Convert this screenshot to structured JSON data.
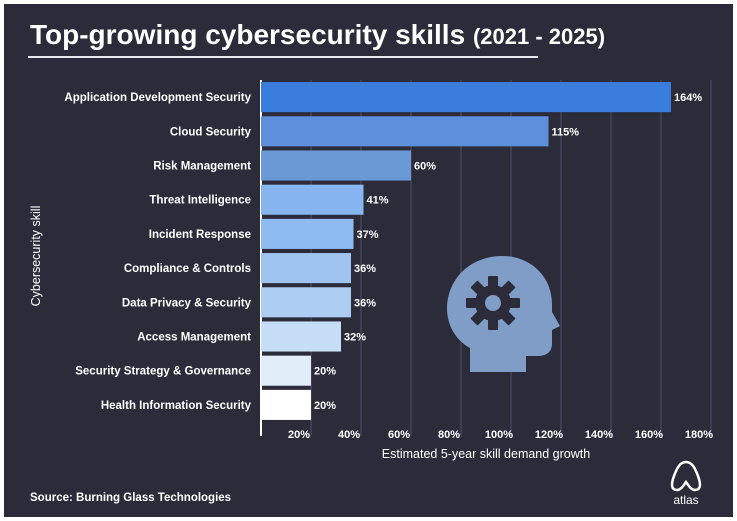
{
  "title": "Top-growing cybersecurity skills",
  "title_suffix": "(2021 - 2025)",
  "source": "Source: Burning Glass Technologies",
  "brand": "atlas",
  "icon": "head-with-gear-icon",
  "colors": {
    "background": "#2b2b3a",
    "text": "#ffffff",
    "grid": "#52526a",
    "icon": "#7f9dc7"
  },
  "chart_data": {
    "type": "bar",
    "orientation": "horizontal",
    "categories": [
      "Application Development Security",
      "Cloud Security",
      "Risk Management",
      "Threat Intelligence",
      "Incident Response",
      "Compliance & Controls",
      "Data Privacy & Security",
      "Access Management",
      "Security Strategy & Governance",
      "Health Information Security"
    ],
    "values": [
      164,
      115,
      60,
      41,
      37,
      36,
      36,
      32,
      20,
      20
    ],
    "value_labels": [
      "164%",
      "115%",
      "60%",
      "41%",
      "37%",
      "36%",
      "36%",
      "32%",
      "20%",
      "20%"
    ],
    "bar_colors": [
      "#3b7ddd",
      "#5c90dc",
      "#6a9ad6",
      "#86b5ef",
      "#8fbcf0",
      "#a0c4f0",
      "#acccf2",
      "#c6def8",
      "#e1edf9",
      "#ffffff"
    ],
    "xlabel": "Estimated 5-year skill demand growth",
    "ylabel": "Cybersecurity skill",
    "xticks": [
      20,
      40,
      60,
      80,
      100,
      120,
      140,
      160,
      180
    ],
    "xtick_labels": [
      "20%",
      "40%",
      "60%",
      "80%",
      "100%",
      "120%",
      "140%",
      "160%",
      "180%"
    ],
    "xlim": [
      0,
      180
    ],
    "grid": true
  }
}
